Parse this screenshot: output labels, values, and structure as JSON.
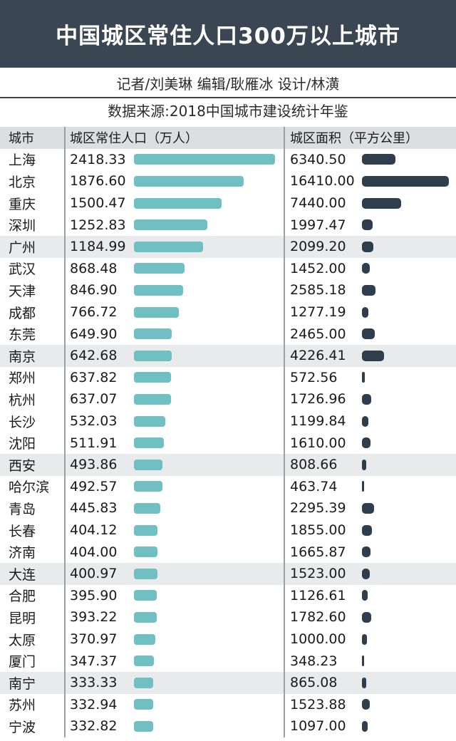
{
  "title": "中国城区常住人口300万以上城市",
  "credits": "记者/刘美琳  编辑/耿雁冰  设计/林潢",
  "source": "数据来源:2018中国城市建设统计年鉴",
  "colors": {
    "header_bg": "#3a4753",
    "population_bar": "#6fbfc3",
    "area_bar": "#2f3e4c",
    "alt_row": "#e9eaeb"
  },
  "chart_data": {
    "type": "table",
    "columns": [
      "城市",
      "城区常住人口（万人）",
      "城区面积（平方公里）"
    ],
    "rows": [
      {
        "city": "上海",
        "population": "2418.33",
        "area": "6340.50"
      },
      {
        "city": "北京",
        "population": "1876.60",
        "area": "16410.00"
      },
      {
        "city": "重庆",
        "population": "1500.47",
        "area": "7440.00"
      },
      {
        "city": "深圳",
        "population": "1252.83",
        "area": "1997.47"
      },
      {
        "city": "广州",
        "population": "1184.99",
        "area": "2099.20"
      },
      {
        "city": "武汉",
        "population": "868.48",
        "area": "1452.00"
      },
      {
        "city": "天津",
        "population": "846.90",
        "area": "2585.18"
      },
      {
        "city": "成都",
        "population": "766.72",
        "area": "1277.19"
      },
      {
        "city": "东莞",
        "population": "649.90",
        "area": "2465.00"
      },
      {
        "city": "南京",
        "population": "642.68",
        "area": "4226.41"
      },
      {
        "city": "郑州",
        "population": "637.82",
        "area": "572.56"
      },
      {
        "city": "杭州",
        "population": "637.07",
        "area": "1726.96"
      },
      {
        "city": "长沙",
        "population": "532.03",
        "area": "1199.84"
      },
      {
        "city": "沈阳",
        "population": "511.91",
        "area": "1610.00"
      },
      {
        "city": "西安",
        "population": "493.86",
        "area": "808.66"
      },
      {
        "city": "哈尔滨",
        "population": "492.57",
        "area": "463.74"
      },
      {
        "city": "青岛",
        "population": "445.83",
        "area": "2295.39"
      },
      {
        "city": "长春",
        "population": "404.12",
        "area": "1855.00"
      },
      {
        "city": "济南",
        "population": "404.00",
        "area": "1665.87"
      },
      {
        "city": "大连",
        "population": "400.97",
        "area": "1523.00"
      },
      {
        "city": "合肥",
        "population": "395.90",
        "area": "1126.61"
      },
      {
        "city": "昆明",
        "population": "393.22",
        "area": "1782.60"
      },
      {
        "city": "太原",
        "population": "370.97",
        "area": "1000.00"
      },
      {
        "city": "厦门",
        "population": "347.37",
        "area": "348.23"
      },
      {
        "city": "南宁",
        "population": "333.33",
        "area": "865.08"
      },
      {
        "city": "苏州",
        "population": "332.94",
        "area": "1523.88"
      },
      {
        "city": "宁波",
        "population": "332.82",
        "area": "1097.00"
      }
    ]
  }
}
